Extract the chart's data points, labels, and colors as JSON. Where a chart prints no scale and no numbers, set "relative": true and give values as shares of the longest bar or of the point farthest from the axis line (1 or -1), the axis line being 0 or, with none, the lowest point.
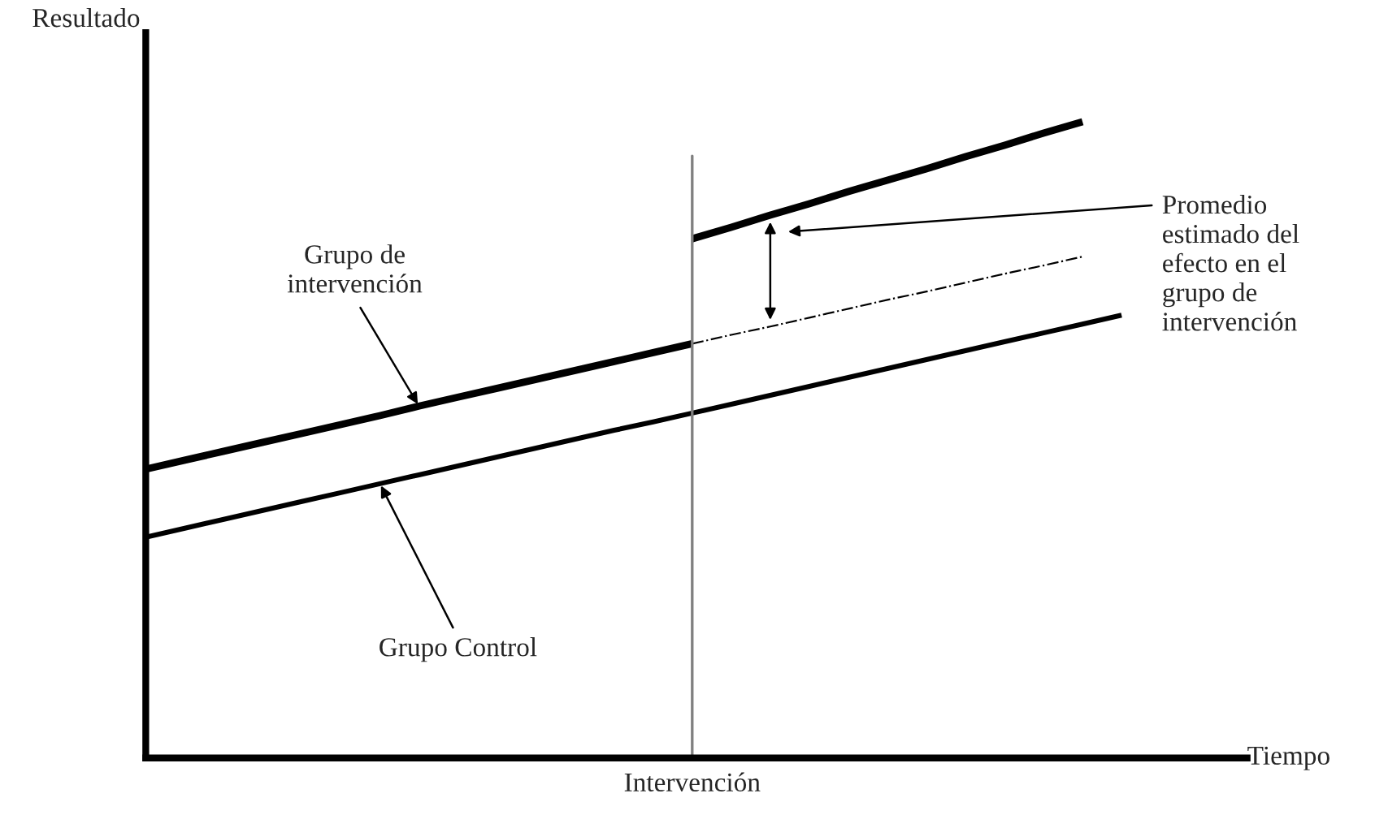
{
  "chart_data": {
    "type": "line",
    "relative": true,
    "ylabel": "Resultado",
    "xlabel": "Tiempo",
    "categories": [
      null,
      null,
      null,
      null,
      null,
      null,
      null,
      null,
      null,
      null,
      null,
      null,
      null,
      null,
      null,
      null,
      null,
      null,
      null,
      null,
      null,
      null,
      null,
      null,
      null,
      null
    ],
    "series": [
      {
        "color": "#000000",
        "line_style": "solid",
        "values": [
          0.454,
          0.468,
          0.482,
          0.496,
          0.51,
          0.524,
          0.538,
          0.553,
          0.567,
          0.581,
          0.595,
          0.609,
          0.623,
          0.637,
          0.651,
          null,
          null,
          null,
          null,
          null,
          null,
          null,
          null,
          null,
          null,
          null
        ]
      },
      {
        "color": "#000000",
        "line_style": "dashed",
        "values": [
          null,
          null,
          null,
          null,
          null,
          null,
          null,
          null,
          null,
          null,
          null,
          null,
          null,
          null,
          0.651,
          0.665,
          0.678,
          0.692,
          0.706,
          0.72,
          0.733,
          0.747,
          0.761,
          0.774,
          0.788,
          null
        ]
      },
      {
        "color": "#000000",
        "line_style": "solid",
        "values": [
          null,
          null,
          null,
          null,
          null,
          null,
          null,
          null,
          null,
          null,
          null,
          null,
          null,
          null,
          0.816,
          0.834,
          0.853,
          0.871,
          0.89,
          0.908,
          0.926,
          0.945,
          0.963,
          0.982,
          1,
          null
        ]
      },
      {
        "color": "#000000",
        "line_style": "solid",
        "values": [
          0.347,
          0.361,
          0.375,
          0.389,
          0.403,
          0.417,
          0.431,
          0.445,
          0.459,
          0.473,
          0.487,
          0.501,
          0.515,
          0.528,
          0.542,
          0.556,
          0.57,
          0.584,
          0.598,
          0.612,
          0.626,
          0.64,
          0.654,
          0.668,
          0.682,
          0.696
        ]
      }
    ],
    "ref_lines": [
      {
        "axis": "x",
        "label": "Intervención",
        "color": "#808080"
      }
    ],
    "annotations": [
      "Grupo de\nintervención",
      "Grupo Control",
      "Promedio\nestimado del\nefecto en el\ngrupo de\nintervención"
    ]
  }
}
